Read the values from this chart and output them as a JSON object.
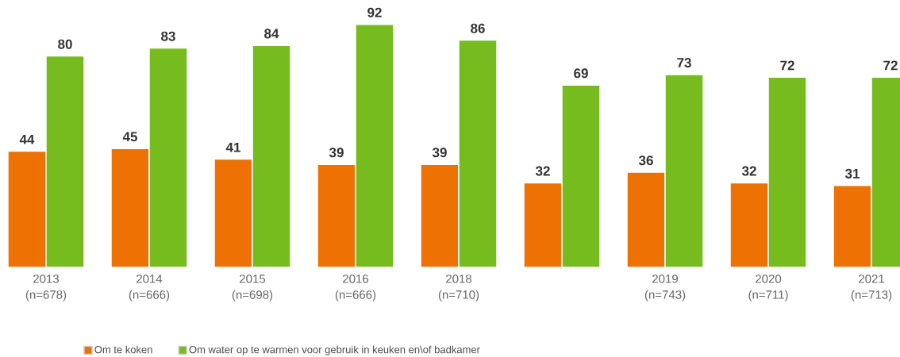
{
  "chart_data": {
    "type": "bar",
    "categories": [
      "2013 (n=678)",
      "2014 (n=666)",
      "2015 (n=698)",
      "2016 (n=666)",
      "2018 (n=710)",
      null,
      "2019 (n=743)",
      "2020 (n=711)",
      "2021 (n=713)"
    ],
    "series": [
      {
        "name": "Om te koken",
        "color": "#ed7203",
        "values": [
          44,
          45,
          41,
          39,
          39,
          32,
          36,
          32,
          31
        ]
      },
      {
        "name": "Om water op te warmen voor gebruik in keuken en\\of badkamer",
        "color": "#77bc1f",
        "values": [
          80,
          83,
          84,
          92,
          86,
          69,
          73,
          72,
          72
        ]
      }
    ],
    "data_labels": true,
    "legend": "bottom left"
  }
}
